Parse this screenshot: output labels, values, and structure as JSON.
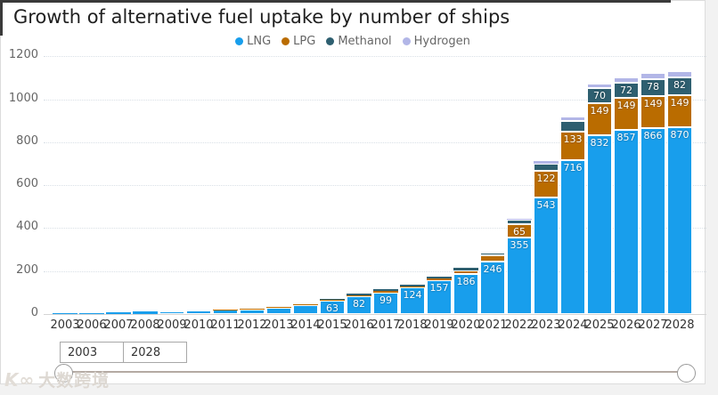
{
  "title": "Growth of alternative fuel uptake by number of ships",
  "watermark": {
    "text": "大数跨境",
    "logo": "K∞"
  },
  "controls": {
    "from_value": "2003",
    "to_value": "2028"
  },
  "chart_data": {
    "type": "bar",
    "stacked": true,
    "title": "Growth of alternative fuel uptake by number of ships",
    "xlabel": "",
    "ylabel": "",
    "ylim": [
      0,
      1200
    ],
    "yticks": [
      0,
      200,
      400,
      600,
      800,
      1000,
      1200
    ],
    "grid": "dotted-horizontal",
    "legend_position": "top-center",
    "label_min": 60,
    "categories": [
      "2003",
      "2006",
      "2007",
      "2008",
      "2009",
      "2010",
      "2011",
      "2012",
      "2013",
      "2014",
      "2015",
      "2016",
      "2017",
      "2018",
      "2019",
      "2020",
      "2021",
      "2022",
      "2023",
      "2024",
      "2025",
      "2026",
      "2027",
      "2028"
    ],
    "series": [
      {
        "name": "LNG",
        "color": "#189EEC",
        "values": [
          3,
          5,
          9,
          11,
          13,
          16,
          19,
          22,
          30,
          41,
          63,
          82,
          99,
          124,
          157,
          186,
          246,
          355,
          543,
          716,
          832,
          857,
          866,
          870
        ]
      },
      {
        "name": "LPG",
        "color": "#BA6C00",
        "values": [
          0,
          0,
          0,
          0,
          0,
          0,
          1,
          2,
          3,
          4,
          5,
          4,
          8,
          6,
          10,
          16,
          26,
          65,
          122,
          133,
          149,
          149,
          149,
          149
        ]
      },
      {
        "name": "Methanol",
        "color": "#2E5F70",
        "values": [
          0,
          0,
          0,
          0,
          0,
          0,
          0,
          0,
          0,
          0,
          3,
          8,
          8,
          6,
          8,
          12,
          14,
          20,
          35,
          50,
          70,
          72,
          78,
          82
        ]
      },
      {
        "name": "Hydrogen",
        "color": "#B2B6E7",
        "values": [
          0,
          0,
          0,
          0,
          0,
          0,
          0,
          0,
          0,
          0,
          0,
          0,
          0,
          0,
          0,
          0,
          0,
          5,
          12,
          20,
          22,
          25,
          28,
          30
        ]
      }
    ]
  }
}
